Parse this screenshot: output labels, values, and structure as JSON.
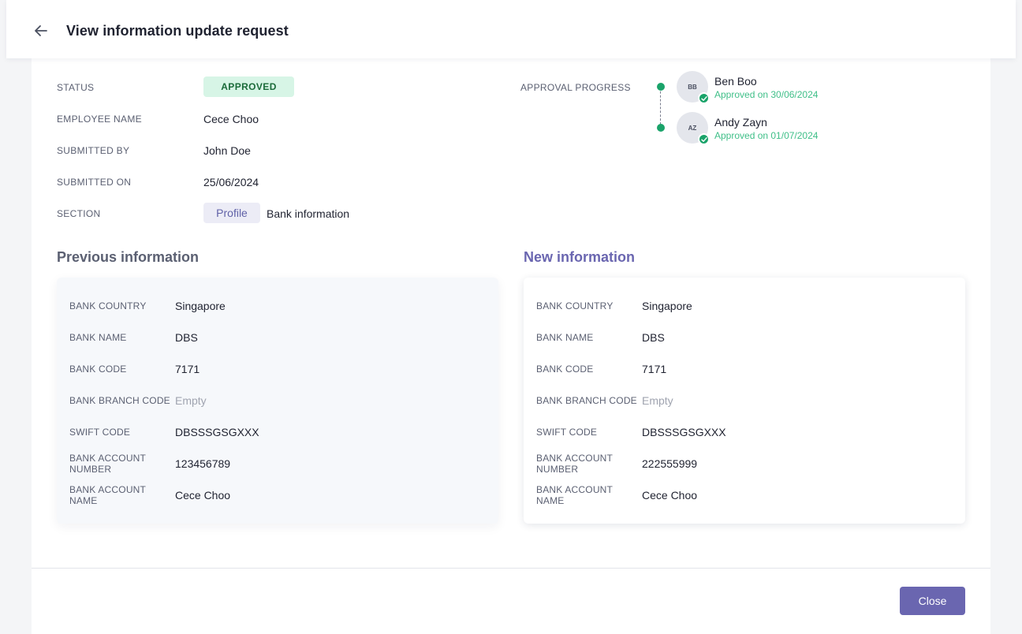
{
  "header": {
    "title": "View information update request",
    "back_icon": "arrow-left-icon"
  },
  "meta": {
    "status": {
      "label": "STATUS",
      "value": "APPROVED",
      "color": "#1b6b3a"
    },
    "employee_name": {
      "label": "EMPLOYEE NAME",
      "value": "Cece Choo"
    },
    "submitted_by": {
      "label": "SUBMITTED BY",
      "value": "John Doe"
    },
    "submitted_on": {
      "label": "SUBMITTED ON",
      "value": "25/06/2024"
    },
    "section": {
      "label": "SECTION",
      "chip": "Profile",
      "value": "Bank information"
    }
  },
  "approval": {
    "label": "APPROVAL PROGRESS",
    "approvers": [
      {
        "initials": "BB",
        "name": "Ben Boo",
        "status": "Approved on 30/06/2024"
      },
      {
        "initials": "AZ",
        "name": "Andy Zayn",
        "status": "Approved on 01/07/2024"
      }
    ]
  },
  "previous": {
    "heading": "Previous information",
    "fields": [
      {
        "label": "BANK COUNTRY",
        "value": "Singapore"
      },
      {
        "label": "BANK NAME",
        "value": "DBS"
      },
      {
        "label": "BANK CODE",
        "value": "7171"
      },
      {
        "label": "BANK BRANCH CODE",
        "value": "Empty"
      },
      {
        "label": "SWIFT CODE",
        "value": "DBSSSGSGXXX"
      },
      {
        "label": "BANK ACCOUNT NUMBER",
        "value": "123456789"
      },
      {
        "label": "BANK ACCOUNT NAME",
        "value": "Cece Choo"
      }
    ]
  },
  "new": {
    "heading": "New information",
    "fields": [
      {
        "label": "BANK COUNTRY",
        "value": "Singapore"
      },
      {
        "label": "BANK NAME",
        "value": "DBS"
      },
      {
        "label": "BANK CODE",
        "value": "7171"
      },
      {
        "label": "BANK BRANCH CODE",
        "value": "Empty"
      },
      {
        "label": "SWIFT CODE",
        "value": "DBSSSGSGXXX"
      },
      {
        "label": "BANK ACCOUNT NUMBER",
        "value": "222555999"
      },
      {
        "label": "BANK ACCOUNT NAME",
        "value": "Cece Choo"
      }
    ]
  },
  "footer": {
    "close_label": "Close"
  },
  "colors": {
    "accent": "#6a66b0",
    "success": "#1aa36a",
    "previous_heading": "#5b6072",
    "new_heading": "#6a66b0"
  }
}
